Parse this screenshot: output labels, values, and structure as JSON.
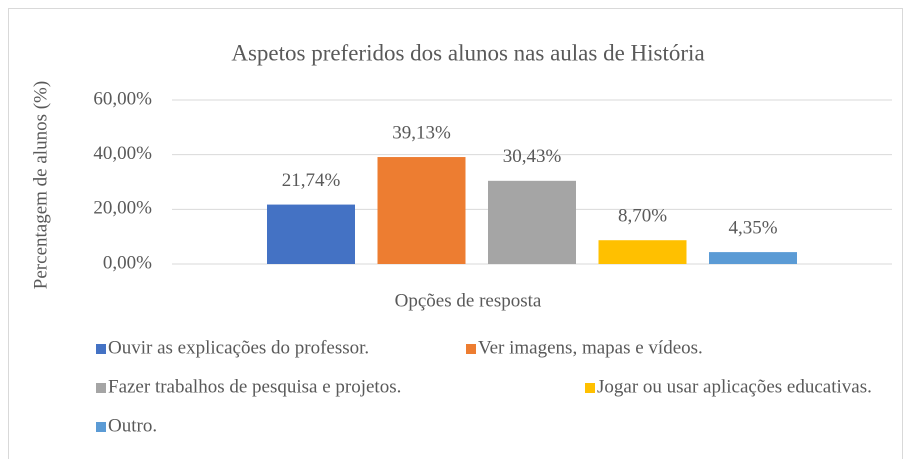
{
  "chart_data": {
    "type": "bar",
    "title": "Aspetos preferidos dos alunos nas aulas de História",
    "x_label": "Opções de resposta",
    "y_label": "Percentagem de alunos (%)",
    "categories": [
      null
    ],
    "series": [
      {
        "name": "Ouvir as explicações do professor.",
        "color": "#4472c4",
        "values": [
          21.74
        ],
        "value_labels": [
          "21,74%"
        ]
      },
      {
        "name": "Ver imagens, mapas e vídeos.",
        "color": "#ed7d31",
        "values": [
          39.13
        ],
        "value_labels": [
          "39,13%"
        ]
      },
      {
        "name": "Fazer trabalhos de pesquisa e projetos.",
        "color": "#a5a5a5",
        "values": [
          30.43
        ],
        "value_labels": [
          "30,43%"
        ]
      },
      {
        "name": "Jogar ou usar aplicações educativas.",
        "color": "#ffc000",
        "values": [
          8.7
        ],
        "value_labels": [
          "8,70%"
        ]
      },
      {
        "name": "Outro.",
        "color": "#5b9bd5",
        "values": [
          4.35
        ],
        "value_labels": [
          "4,35%"
        ]
      }
    ],
    "ylim": [
      0,
      60
    ],
    "yticks": [
      {
        "value": 0,
        "label": "0,00%"
      },
      {
        "value": 20,
        "label": "20,00%"
      },
      {
        "value": 40,
        "label": "40,00%"
      },
      {
        "value": 60,
        "label": "60,00%"
      }
    ],
    "grid": true,
    "legend": "bottom"
  }
}
